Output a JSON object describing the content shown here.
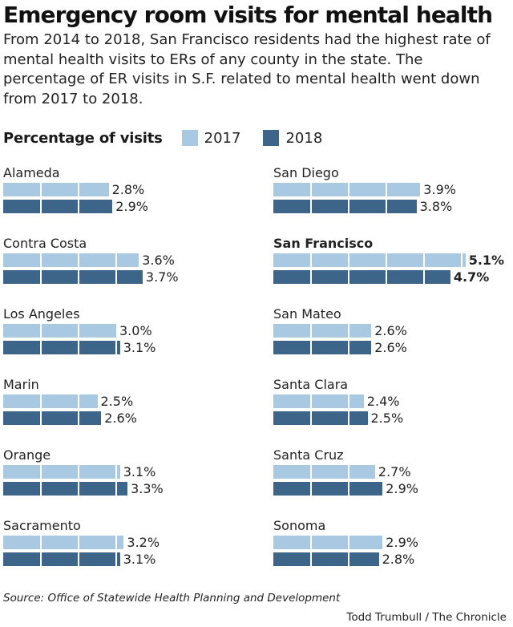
{
  "title": "Emergency room visits for mental health",
  "subtitle": "From 2014 to 2018, San Francisco residents had the highest rate of mental health visits to ERs of any county in the state. The percentage of ER visits in S.F. related to mental health went down from 2017 to 2018.",
  "legend": {
    "title": "Percentage of visits",
    "items": [
      {
        "label": "2017",
        "color": "#a9c9e2"
      },
      {
        "label": "2018",
        "color": "#3d6489"
      }
    ]
  },
  "chart_data": {
    "type": "bar",
    "orientation": "horizontal",
    "title": "Emergency room visits for mental health",
    "unit": "%",
    "xlim": [
      0,
      5.5
    ],
    "grid": true,
    "legend_position": "top-left",
    "categories": [
      "Alameda",
      "Contra Costa",
      "Los Angeles",
      "Marin",
      "Orange",
      "Sacramento",
      "San Diego",
      "San Francisco",
      "San Mateo",
      "Santa Clara",
      "Santa Cruz",
      "Sonoma"
    ],
    "highlight": "San Francisco",
    "series": [
      {
        "name": "2017",
        "color": "#a9c9e2",
        "values": [
          2.8,
          3.6,
          3.0,
          2.5,
          3.1,
          3.2,
          3.9,
          5.1,
          2.6,
          2.4,
          2.7,
          2.9
        ]
      },
      {
        "name": "2018",
        "color": "#3d6489",
        "values": [
          2.9,
          3.7,
          3.1,
          2.6,
          3.3,
          3.1,
          3.8,
          4.7,
          2.6,
          2.5,
          2.9,
          2.8
        ]
      }
    ],
    "value_labels": [
      [
        "2.8%",
        "2.9%"
      ],
      [
        "3.6%",
        "3.7%"
      ],
      [
        "3.0%",
        "3.1%"
      ],
      [
        "2.5%",
        "2.6%"
      ],
      [
        "3.1%",
        "3.3%"
      ],
      [
        "3.2%",
        "3.1%"
      ],
      [
        "3.9%",
        "3.8%"
      ],
      [
        "5.1%",
        "4.7%"
      ],
      [
        "2.6%",
        "2.6%"
      ],
      [
        "2.4%",
        "2.5%"
      ],
      [
        "2.7%",
        "2.9%"
      ],
      [
        "2.9%",
        "2.8%"
      ]
    ]
  },
  "source": "Source: Office of Statewide Health Planning and Development",
  "credit": "Todd Trumbull / The Chronicle"
}
